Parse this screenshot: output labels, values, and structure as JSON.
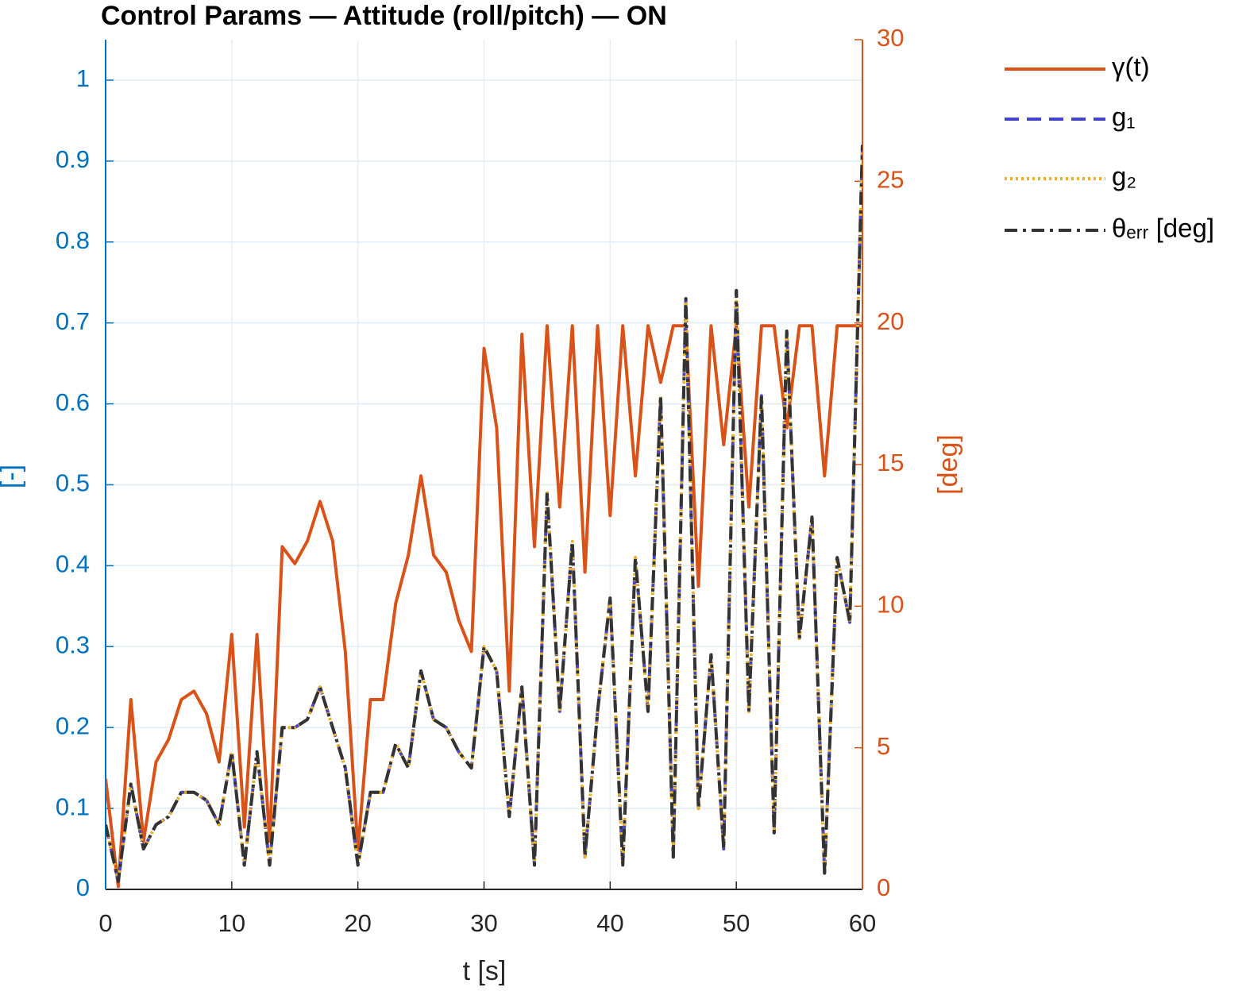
{
  "chart_data": {
    "type": "line",
    "title": "Control Params — Attitude (roll/pitch) — ON",
    "xlabel": "t [s]",
    "ylabel": "[-]",
    "y2label": "[deg]",
    "xlim": [
      0,
      60
    ],
    "xticks": [
      0,
      10,
      20,
      30,
      40,
      50,
      60
    ],
    "ylim": [
      0,
      1.05
    ],
    "yticks": [
      0,
      0.1,
      0.2,
      0.3,
      0.4,
      0.5,
      0.6,
      0.7,
      0.8,
      0.9,
      1
    ],
    "y2lim": [
      0,
      30
    ],
    "y2ticks": [
      0,
      5,
      10,
      15,
      20,
      25,
      30
    ],
    "ycolor": "#0072BD",
    "y2color": "#D95319",
    "grid": true,
    "legend": "outside-right",
    "x": [
      0,
      1,
      2,
      3,
      4,
      5,
      6,
      7,
      8,
      9,
      10,
      11,
      12,
      13,
      14,
      15,
      16,
      17,
      18,
      19,
      20,
      21,
      22,
      23,
      24,
      25,
      26,
      27,
      28,
      29,
      30,
      31,
      32,
      33,
      34,
      35,
      36,
      37,
      38,
      39,
      40,
      41,
      42,
      43,
      44,
      45,
      46,
      47,
      48,
      49,
      50,
      51,
      52,
      53,
      54,
      55,
      56,
      57,
      58,
      59,
      60
    ],
    "series": [
      {
        "name": "γ(t)",
        "color": "#D95319",
        "style": "solid",
        "axis": "y2",
        "values": [
          3.9,
          0.1,
          6.7,
          1.7,
          4.5,
          5.3,
          6.7,
          7.0,
          6.2,
          4.5,
          9.0,
          2.2,
          9.0,
          1.7,
          12.1,
          11.5,
          12.3,
          13.7,
          12.3,
          8.4,
          1.4,
          6.7,
          6.7,
          10.1,
          11.8,
          14.6,
          11.8,
          11.2,
          9.5,
          8.4,
          19.1,
          16.3,
          7.0,
          19.6,
          12.1,
          19.9,
          13.5,
          19.9,
          11.2,
          19.9,
          13.2,
          19.9,
          14.6,
          19.9,
          17.9,
          19.9,
          19.9,
          10.7,
          19.9,
          15.7,
          19.9,
          13.5,
          19.9,
          19.9,
          16.3,
          19.9,
          19.9,
          14.6,
          19.9,
          19.9,
          19.9
        ]
      },
      {
        "name": "g₁",
        "color": "#4444CC",
        "style": "dashed",
        "axis": "y",
        "values": [
          0.08,
          0.01,
          0.13,
          0.05,
          0.08,
          0.09,
          0.12,
          0.12,
          0.11,
          0.08,
          0.17,
          0.03,
          0.17,
          0.03,
          0.2,
          0.2,
          0.21,
          0.25,
          0.2,
          0.15,
          0.03,
          0.12,
          0.12,
          0.18,
          0.15,
          0.27,
          0.21,
          0.2,
          0.17,
          0.15,
          0.3,
          0.27,
          0.09,
          0.25,
          0.03,
          0.49,
          0.22,
          0.43,
          0.04,
          0.22,
          0.36,
          0.03,
          0.41,
          0.22,
          0.61,
          0.04,
          0.73,
          0.1,
          0.29,
          0.05,
          0.74,
          0.22,
          0.61,
          0.07,
          0.69,
          0.31,
          0.46,
          0.02,
          0.41,
          0.33,
          0.92
        ]
      },
      {
        "name": "g₂",
        "color": "#EDB120",
        "style": "dotted",
        "axis": "y",
        "values": [
          0.08,
          0.01,
          0.13,
          0.05,
          0.08,
          0.09,
          0.12,
          0.12,
          0.11,
          0.08,
          0.17,
          0.03,
          0.17,
          0.03,
          0.2,
          0.2,
          0.21,
          0.25,
          0.2,
          0.15,
          0.03,
          0.12,
          0.12,
          0.18,
          0.15,
          0.27,
          0.21,
          0.2,
          0.17,
          0.15,
          0.3,
          0.27,
          0.09,
          0.25,
          0.03,
          0.49,
          0.22,
          0.43,
          0.04,
          0.22,
          0.36,
          0.03,
          0.41,
          0.22,
          0.61,
          0.04,
          0.73,
          0.1,
          0.29,
          0.05,
          0.74,
          0.22,
          0.61,
          0.07,
          0.69,
          0.31,
          0.46,
          0.02,
          0.41,
          0.33,
          0.92
        ]
      },
      {
        "name": "θₑᵣᵣ [deg]",
        "color": "#333333",
        "style": "dashdot",
        "axis": "y",
        "values": [
          0.08,
          0.01,
          0.13,
          0.05,
          0.08,
          0.09,
          0.12,
          0.12,
          0.11,
          0.08,
          0.17,
          0.03,
          0.17,
          0.03,
          0.2,
          0.2,
          0.21,
          0.25,
          0.2,
          0.15,
          0.03,
          0.12,
          0.12,
          0.18,
          0.15,
          0.27,
          0.21,
          0.2,
          0.17,
          0.15,
          0.3,
          0.27,
          0.09,
          0.25,
          0.03,
          0.49,
          0.22,
          0.43,
          0.04,
          0.22,
          0.36,
          0.03,
          0.41,
          0.22,
          0.61,
          0.04,
          0.73,
          0.1,
          0.29,
          0.05,
          0.74,
          0.22,
          0.61,
          0.07,
          0.69,
          0.31,
          0.46,
          0.02,
          0.41,
          0.33,
          0.92
        ]
      }
    ]
  }
}
